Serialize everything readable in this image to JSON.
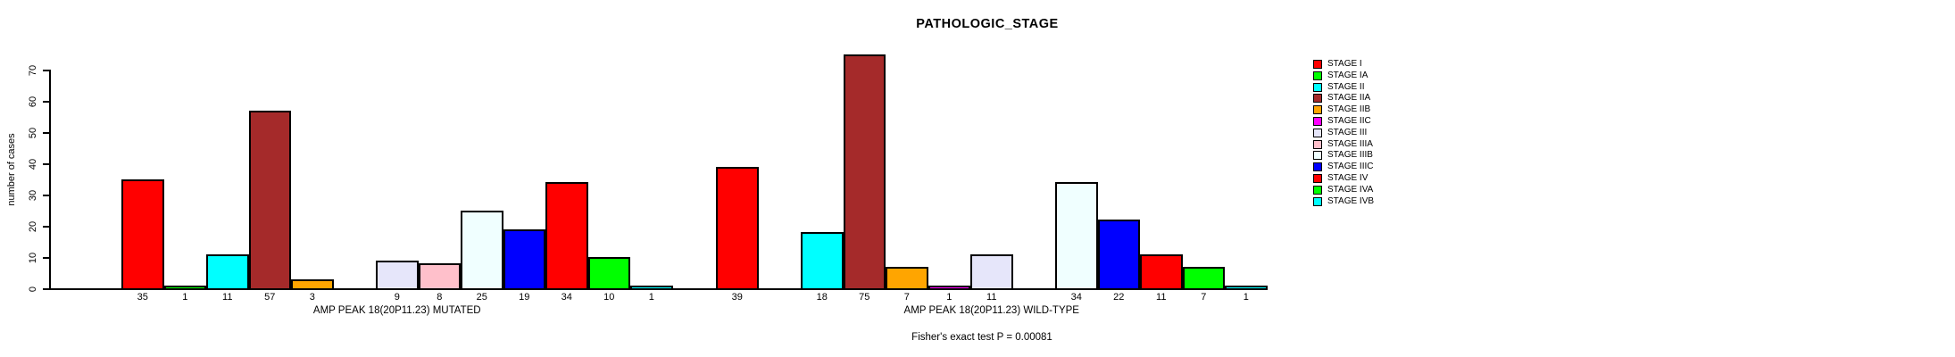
{
  "title": "PATHOLOGIC_STAGE",
  "footer_note": "Fisher's exact test P = 0.00081",
  "chart_data": {
    "type": "bar",
    "title": "PATHOLOGIC_STAGE",
    "xlabel": "",
    "ylabel": "number of cases",
    "ylim": [
      0,
      75
    ],
    "yticks": [
      0,
      10,
      20,
      30,
      40,
      50,
      60,
      70
    ],
    "grid": false,
    "legend_position": "right",
    "categories": [
      "STAGE I",
      "STAGE IA",
      "STAGE II",
      "STAGE IIA",
      "STAGE IIB",
      "STAGE IIC",
      "STAGE III",
      "STAGE IIIA",
      "STAGE IIIB",
      "STAGE IIIC",
      "STAGE IV",
      "STAGE IVA",
      "STAGE IVB"
    ],
    "colors": [
      "#FF0000",
      "#00FF00",
      "#00FFFF",
      "#A52A2A",
      "#FFA500",
      "#FF00FF",
      "#E6E6FA",
      "#FFC0CB",
      "#F0FFFF",
      "#0000FF",
      "#FF0000",
      "#00FF00",
      "#00FFFF"
    ],
    "series": [
      {
        "name": "AMP PEAK 18(20P11.23) MUTATED",
        "values": [
          35,
          1,
          11,
          57,
          3,
          0,
          9,
          8,
          25,
          19,
          34,
          10,
          1
        ]
      },
      {
        "name": "AMP PEAK 18(20P11.23) WILD-TYPE",
        "values": [
          39,
          0,
          18,
          75,
          7,
          1,
          11,
          0,
          34,
          22,
          11,
          7,
          1
        ]
      }
    ],
    "annotation": "Fisher's exact test P = 0.00081"
  }
}
